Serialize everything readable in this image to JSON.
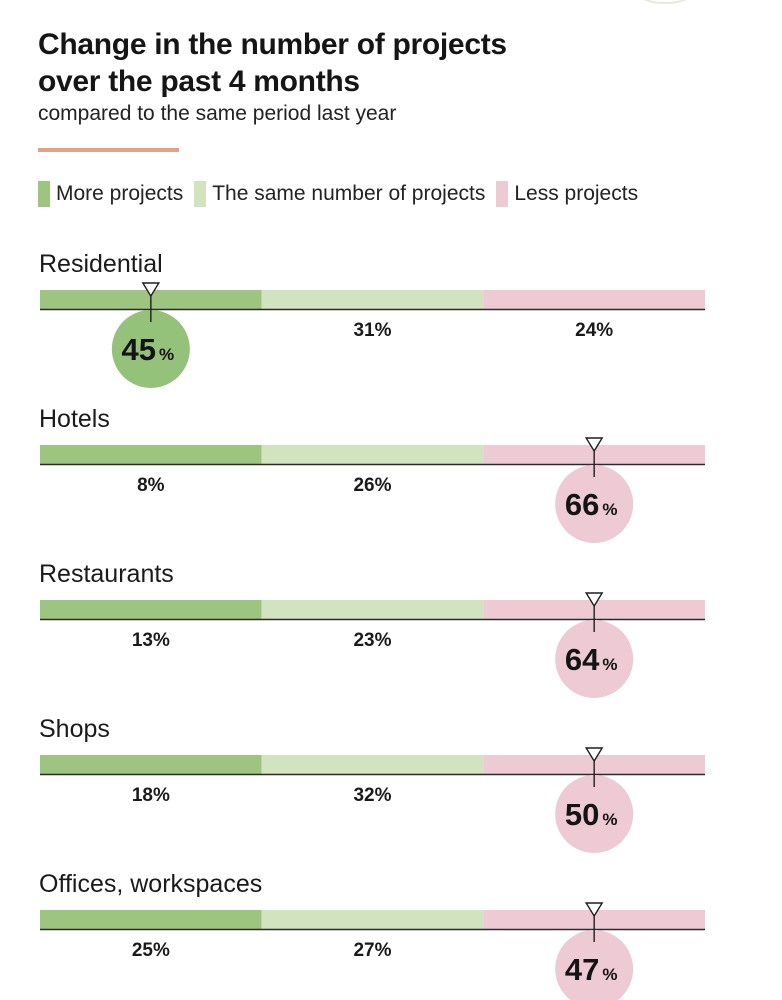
{
  "chart_data": {
    "type": "bar",
    "title_lines": [
      "Change in the number of projects",
      "over the past 4 months"
    ],
    "subtitle": "compared to the same period last year",
    "legend_position": "top",
    "series": [
      {
        "name": "More projects",
        "color": "#9ec580"
      },
      {
        "name": "The same number of projects",
        "color": "#d2e3c0"
      },
      {
        "name": "Less projects",
        "color": "#edcad4"
      }
    ],
    "categories": [
      "Residential",
      "Hotels",
      "Restaurants",
      "Shops",
      "Offices, workspaces"
    ],
    "values": [
      [
        45,
        31,
        24
      ],
      [
        8,
        26,
        66
      ],
      [
        13,
        23,
        64
      ],
      [
        18,
        32,
        50
      ],
      [
        25,
        27,
        47
      ]
    ],
    "unit": "%"
  }
}
